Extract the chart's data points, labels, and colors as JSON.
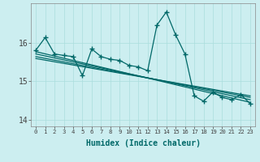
{
  "xlabel": "Humidex (Indice chaleur)",
  "background_color": "#cceef0",
  "grid_color": "#aadddd",
  "line_color": "#006868",
  "x_data": [
    0,
    1,
    2,
    3,
    4,
    5,
    6,
    7,
    8,
    9,
    10,
    11,
    12,
    13,
    14,
    15,
    16,
    17,
    18,
    19,
    20,
    21,
    22,
    23
  ],
  "line1": [
    15.82,
    16.15,
    15.72,
    15.68,
    15.65,
    15.15,
    15.85,
    15.65,
    15.58,
    15.55,
    15.42,
    15.38,
    15.28,
    16.48,
    16.82,
    16.22,
    15.72,
    14.62,
    14.48,
    14.72,
    14.58,
    14.52,
    14.65,
    14.42
  ],
  "regression_lines": [
    {
      "start_x": 0,
      "start_y": 15.78,
      "end_x": 23,
      "end_y": 14.45
    },
    {
      "start_x": 0,
      "start_y": 15.72,
      "end_x": 23,
      "end_y": 14.52
    },
    {
      "start_x": 0,
      "start_y": 15.65,
      "end_x": 23,
      "end_y": 14.58
    },
    {
      "start_x": 0,
      "start_y": 15.6,
      "end_x": 23,
      "end_y": 14.62
    }
  ],
  "xlim": [
    -0.5,
    23.5
  ],
  "ylim": [
    13.82,
    17.05
  ],
  "yticks": [
    14,
    15,
    16
  ],
  "xticks": [
    0,
    1,
    2,
    3,
    4,
    5,
    6,
    7,
    8,
    9,
    10,
    11,
    12,
    13,
    14,
    15,
    16,
    17,
    18,
    19,
    20,
    21,
    22,
    23
  ],
  "marker": "+",
  "markersize": 4,
  "linewidth": 0.9,
  "figsize": [
    3.2,
    2.0
  ],
  "dpi": 100
}
